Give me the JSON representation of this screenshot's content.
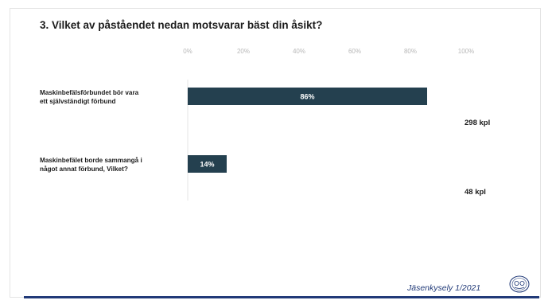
{
  "slide": {
    "title": "3. Vilket av påståendet nedan motsvarar bäst din åsikt?",
    "footer_text": "Jäsenkysely 1/2021",
    "logo_icon": "union-emblem-icon"
  },
  "colors": {
    "bar": "#24404f",
    "bar_label": "#ffffff",
    "tick_label": "#b8b8b8",
    "footer": "#213a78"
  },
  "chart_data": {
    "type": "bar",
    "orientation": "horizontal",
    "title": "3. Vilket av påståendet nedan motsvarar bäst din åsikt?",
    "categories": [
      "Maskinbefälsförbundet bör vara ett självständigt förbund",
      "Maskinbefälet borde sammangå i något annat förbund, Vilket?"
    ],
    "category_lines": [
      [
        "Maskinbefälsförbundet bör vara",
        "ett självständigt förbund"
      ],
      [
        "Maskinbefälet borde sammangå i",
        "något annat förbund, Vilket?"
      ]
    ],
    "values": [
      86,
      14
    ],
    "value_labels": [
      "86%",
      "14%"
    ],
    "counts": [
      "298 kpl",
      "48 kpl"
    ],
    "x_ticks": [
      "0%",
      "20%",
      "40%",
      "60%",
      "80%",
      "100%"
    ],
    "xlim": [
      0,
      100
    ],
    "xlabel": "",
    "ylabel": "",
    "grid": false,
    "legend": "none"
  }
}
